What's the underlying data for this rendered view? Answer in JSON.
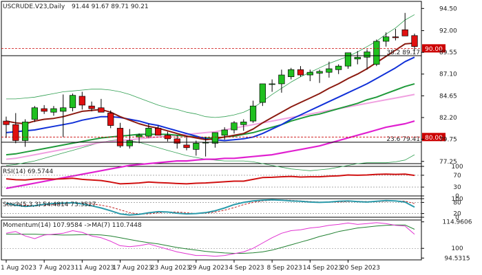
{
  "chart_data": {
    "type": "candlestick",
    "header": {
      "symbol": "USCRUDE.V23,Daily",
      "ohlc": "91.44 91.67 89.71 90.21"
    },
    "price_axis": {
      "ticks": [
        "94.50",
        "92.00",
        "89.55",
        "87.10",
        "84.65",
        "82.20",
        "79.75",
        "77.25"
      ],
      "tick_values": [
        94.5,
        92.0,
        89.55,
        87.1,
        84.65,
        82.2,
        79.75,
        77.25
      ],
      "range": [
        77.0,
        95.3
      ]
    },
    "price_tags": [
      {
        "label": "90.00",
        "value": 90.0,
        "color": "#cc0000"
      },
      {
        "label": "80.00",
        "value": 80.0,
        "color": "#cc0000"
      }
    ],
    "fib_levels": [
      {
        "label": "38.2 89.17",
        "value": 89.17
      },
      {
        "label": "23.6 79.41",
        "value": 79.41
      }
    ],
    "dates": [
      "1 Aug 2023",
      "7 Aug 2023",
      "11 Aug 2023",
      "17 Aug 2023",
      "23 Aug 2023",
      "29 Aug 2023",
      "4 Sep 2023",
      "8 Sep 2023",
      "14 Sep 2023",
      "20 Sep 2023"
    ],
    "date_positions": [
      0,
      4,
      8,
      12,
      16,
      20,
      24,
      28,
      32,
      36
    ],
    "candles": [
      [
        81.8,
        82.3,
        79.9,
        81.4
      ],
      [
        81.4,
        82.7,
        79.3,
        79.6
      ],
      [
        79.6,
        82.0,
        78.9,
        81.7
      ],
      [
        82.0,
        83.5,
        81.7,
        83.3
      ],
      [
        83.2,
        83.6,
        82.6,
        82.9
      ],
      [
        82.8,
        83.5,
        82.4,
        83.2
      ],
      [
        82.9,
        84.8,
        80.0,
        83.3
      ],
      [
        83.3,
        84.9,
        82.9,
        84.7
      ],
      [
        84.6,
        85.1,
        83.1,
        83.6
      ],
      [
        83.5,
        84.0,
        82.9,
        83.2
      ],
      [
        83.3,
        84.3,
        82.8,
        82.8
      ],
      [
        82.7,
        83.0,
        81.0,
        81.3
      ],
      [
        81.0,
        81.6,
        78.8,
        79.0
      ],
      [
        79.0,
        80.9,
        78.7,
        79.6
      ],
      [
        80.0,
        80.4,
        79.3,
        80.2
      ],
      [
        80.1,
        81.5,
        79.9,
        81.0
      ],
      [
        81.0,
        81.3,
        80.2,
        80.2
      ],
      [
        80.2,
        80.6,
        79.5,
        79.8
      ],
      [
        79.8,
        80.2,
        78.7,
        79.3
      ],
      [
        79.1,
        80.1,
        78.5,
        78.8
      ],
      [
        78.6,
        79.6,
        77.9,
        79.3
      ],
      [
        79.4,
        80.0,
        77.8,
        79.4
      ],
      [
        79.3,
        80.5,
        78.8,
        80.5
      ],
      [
        80.2,
        81.1,
        79.7,
        80.8
      ],
      [
        80.8,
        81.8,
        80.4,
        81.6
      ],
      [
        81.4,
        82.0,
        80.7,
        81.7
      ],
      [
        81.8,
        84.1,
        81.6,
        83.5
      ],
      [
        83.9,
        86.0,
        83.5,
        86.0
      ],
      [
        86.0,
        86.5,
        85.1,
        86.0
      ],
      [
        86.0,
        87.6,
        85.0,
        87.0
      ],
      [
        86.8,
        87.8,
        86.5,
        87.6
      ],
      [
        87.6,
        88.0,
        86.8,
        87.0
      ],
      [
        87.0,
        87.6,
        86.3,
        87.3
      ],
      [
        87.2,
        87.6,
        86.1,
        87.4
      ],
      [
        87.3,
        88.5,
        86.7,
        87.7
      ],
      [
        87.6,
        88.2,
        87.1,
        88.0
      ],
      [
        88.0,
        89.5,
        87.7,
        89.5
      ],
      [
        88.8,
        89.7,
        88.2,
        89.0
      ],
      [
        89.0,
        89.9,
        87.6,
        89.6
      ],
      [
        88.2,
        91.0,
        88.0,
        90.8
      ],
      [
        90.8,
        91.8,
        90.2,
        91.3
      ],
      [
        91.3,
        92.2,
        90.9,
        91.2
      ],
      [
        92.1,
        94.0,
        91.4,
        91.4
      ],
      [
        91.44,
        91.67,
        89.71,
        90.21
      ]
    ],
    "indicators": {
      "bollinger_upper": [
        84.3,
        84.3,
        84.4,
        84.5,
        84.7,
        84.9,
        85.1,
        85.2,
        85.3,
        85.4,
        85.4,
        85.3,
        85.1,
        84.8,
        84.4,
        84.0,
        83.6,
        83.3,
        83.1,
        82.8,
        82.6,
        82.3,
        82.2,
        82.3,
        82.5,
        82.8,
        83.3,
        84.0,
        84.8,
        85.5,
        86.2,
        86.8,
        87.3,
        87.8,
        88.3,
        88.7,
        89.1,
        89.6,
        90.2,
        90.8,
        91.6,
        92.3,
        93.2,
        93.8
      ],
      "ema_dark_red": [
        81.8,
        81.6,
        81.5,
        81.8,
        82.0,
        82.1,
        82.3,
        82.6,
        82.9,
        83.0,
        83.1,
        82.8,
        82.3,
        81.9,
        81.5,
        81.2,
        81.0,
        80.7,
        80.4,
        80.1,
        79.9,
        79.7,
        79.8,
        80.0,
        80.2,
        80.4,
        80.9,
        81.6,
        82.2,
        82.8,
        83.4,
        83.9,
        84.4,
        84.9,
        85.5,
        86.0,
        86.6,
        87.1,
        87.7,
        88.4,
        89.1,
        89.8,
        90.5,
        90.6
      ],
      "ma_blue": [
        80.5,
        80.6,
        80.7,
        80.8,
        81.0,
        81.2,
        81.4,
        81.6,
        81.9,
        82.1,
        82.3,
        82.3,
        82.2,
        82.0,
        81.8,
        81.5,
        81.3,
        81.0,
        80.7,
        80.4,
        80.1,
        79.8,
        79.7,
        79.6,
        79.7,
        79.8,
        80.0,
        80.4,
        80.9,
        81.4,
        82.0,
        82.5,
        83.0,
        83.5,
        84.0,
        84.5,
        85.0,
        85.5,
        86.0,
        86.6,
        87.2,
        87.8,
        88.5,
        89.0
      ],
      "bollinger_lower": [
        76.8,
        76.9,
        77.1,
        77.3,
        77.6,
        77.9,
        78.2,
        78.5,
        78.8,
        79.1,
        79.4,
        79.6,
        79.7,
        79.6,
        79.4,
        79.1,
        78.8,
        78.5,
        78.2,
        77.9,
        77.7,
        77.5,
        77.4,
        77.3,
        77.3,
        77.3,
        77.2,
        77.0,
        76.8,
        76.6,
        76.4,
        76.3,
        76.2,
        76.3,
        76.4,
        76.6,
        76.8,
        77.0,
        77.1,
        77.1,
        77.1,
        77.2,
        77.4,
        78.0
      ],
      "sma_green": [
        78.0,
        78.1,
        78.3,
        78.5,
        78.7,
        78.9,
        79.1,
        79.3,
        79.5,
        79.7,
        79.9,
        80.0,
        80.1,
        80.2,
        80.3,
        80.3,
        80.3,
        80.3,
        80.2,
        80.1,
        80.0,
        79.9,
        79.9,
        80.0,
        80.1,
        80.3,
        80.5,
        80.8,
        81.1,
        81.4,
        81.8,
        82.1,
        82.4,
        82.6,
        82.9,
        83.2,
        83.5,
        83.8,
        84.2,
        84.5,
        84.9,
        85.3,
        85.7,
        86.0
      ],
      "sma_pink": [
        77.5,
        77.6,
        77.8,
        78.0,
        78.2,
        78.4,
        78.6,
        78.8,
        79.0,
        79.2,
        79.4,
        79.5,
        79.6,
        79.7,
        79.8,
        79.9,
        80.0,
        80.1,
        80.2,
        80.3,
        80.4,
        80.5,
        80.6,
        80.8,
        81.0,
        81.2,
        81.4,
        81.6,
        81.8,
        82.0,
        82.2,
        82.4,
        82.6,
        82.8,
        83.0,
        83.2,
        83.4,
        83.6,
        83.8,
        84.0,
        84.2,
        84.4,
        84.6,
        84.8
      ],
      "sma_magenta": [
        74.2,
        74.4,
        74.6,
        74.8,
        75.0,
        75.2,
        75.4,
        75.6,
        75.8,
        76.0,
        76.2,
        76.4,
        76.6,
        76.8,
        76.9,
        77.0,
        77.1,
        77.2,
        77.3,
        77.3,
        77.4,
        77.5,
        77.5,
        77.6,
        77.6,
        77.7,
        77.8,
        77.9,
        78.0,
        78.2,
        78.4,
        78.6,
        78.8,
        79.0,
        79.3,
        79.6,
        79.9,
        80.2,
        80.5,
        80.8,
        81.1,
        81.3,
        81.5,
        81.8
      ]
    },
    "rsi": {
      "label": "RSI(14) 69.5744",
      "ticks": [
        "100",
        "70",
        "30",
        "0"
      ],
      "tick_values": [
        100,
        70,
        30,
        0
      ],
      "range": [
        0,
        100
      ],
      "values": [
        58,
        55,
        54,
        57,
        58,
        57,
        58,
        60,
        56,
        54,
        52,
        47,
        41,
        42,
        44,
        47,
        45,
        44,
        42,
        41,
        43,
        44,
        46,
        48,
        50,
        50,
        56,
        62,
        63,
        65,
        66,
        64,
        65,
        65,
        67,
        68,
        71,
        70,
        71,
        73,
        74,
        73,
        74,
        69.5744
      ]
    },
    "stoch": {
      "label": "Stoch(5,3,3) 54.4814 73.3527",
      "ticks": [
        "100",
        "80",
        "20",
        "0"
      ],
      "tick_values": [
        100,
        80,
        20,
        0
      ],
      "range": [
        0,
        100
      ],
      "k": [
        75,
        65,
        58,
        62,
        70,
        74,
        76,
        78,
        72,
        62,
        50,
        35,
        18,
        12,
        16,
        24,
        30,
        28,
        22,
        18,
        20,
        25,
        35,
        50,
        68,
        80,
        88,
        92,
        94,
        92,
        88,
        86,
        82,
        80,
        82,
        86,
        88,
        84,
        82,
        86,
        90,
        88,
        82,
        54.4814
      ],
      "d": [
        70,
        68,
        65,
        63,
        65,
        68,
        72,
        76,
        76,
        72,
        65,
        55,
        40,
        25,
        17,
        18,
        24,
        28,
        28,
        24,
        20,
        22,
        28,
        38,
        52,
        68,
        80,
        88,
        92,
        93,
        91,
        88,
        85,
        82,
        81,
        82,
        84,
        86,
        85,
        84,
        86,
        88,
        87,
        73.3527
      ]
    },
    "momentum": {
      "label": "Momentum(14) 107.9584  ->MA(7) 110.7448",
      "ticks": [
        "114.9606",
        "100",
        "94.5315"
      ],
      "tick_values": [
        114.9606,
        100,
        94.5315
      ],
      "range": [
        93.5,
        116
      ],
      "momentum": [
        108.5,
        109.5,
        107,
        105.5,
        107.5,
        108,
        108.5,
        110,
        109,
        107,
        106,
        104,
        101.5,
        101,
        101.5,
        102.5,
        101,
        99.5,
        98,
        97,
        96,
        96,
        95.5,
        96,
        97,
        98,
        100,
        103,
        106,
        108.5,
        110,
        110.5,
        111.5,
        112,
        113,
        113.5,
        114.3,
        113.5,
        114,
        114.5,
        114,
        113,
        112.6,
        107.9584
      ],
      "ma7": [
        108,
        108,
        108,
        108,
        107.8,
        107.7,
        107.5,
        107.6,
        107.7,
        107.8,
        107.6,
        107,
        106,
        105,
        104,
        103.2,
        102.5,
        101.5,
        100.5,
        99.7,
        99,
        98.3,
        97.8,
        97.4,
        97.2,
        97.2,
        97.5,
        98,
        99,
        100.5,
        102,
        103.5,
        105,
        106.7,
        108,
        109.5,
        110.5,
        111.5,
        112,
        112.6,
        113,
        113.2,
        113.2,
        110.7448
      ]
    }
  }
}
